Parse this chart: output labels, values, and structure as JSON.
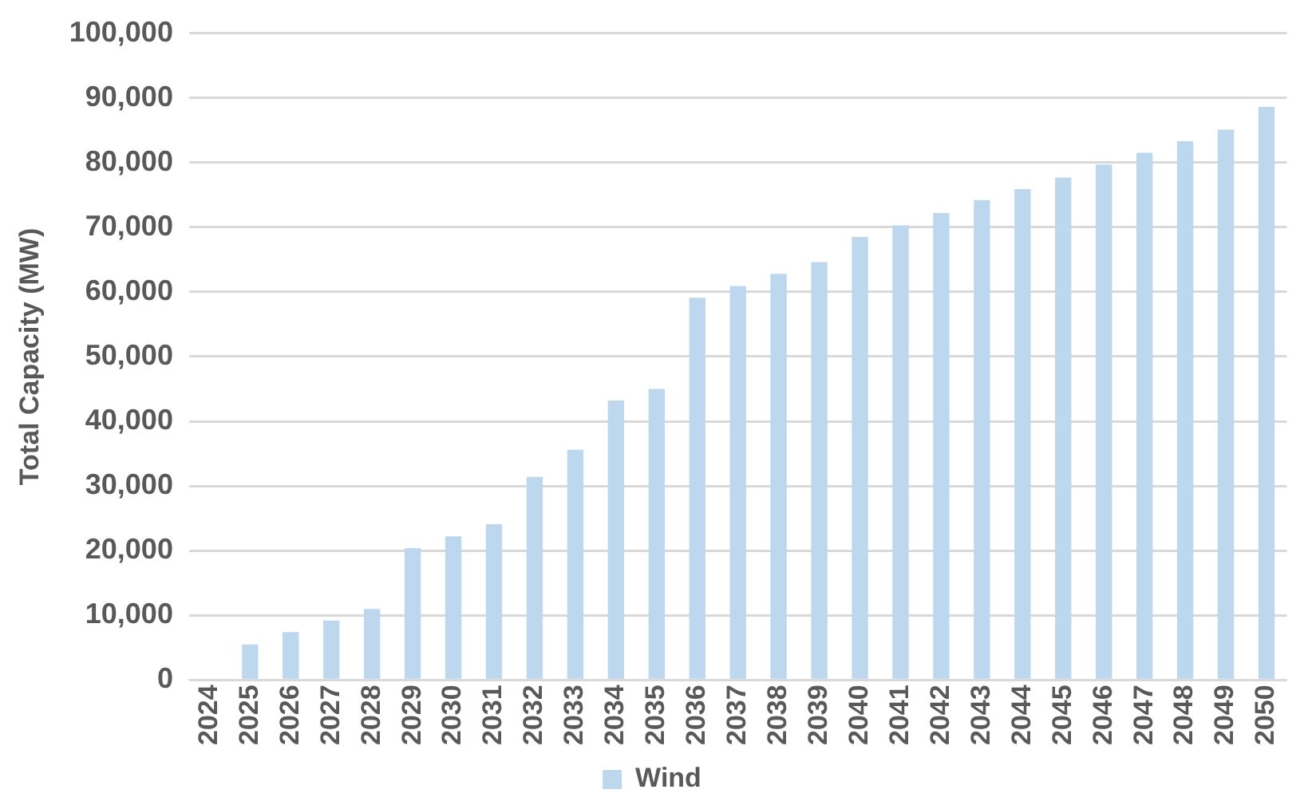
{
  "chart_data": {
    "type": "bar",
    "ylabel": "Total Capacity (MW)",
    "categories": [
      "2024",
      "2025",
      "2026",
      "2027",
      "2028",
      "2029",
      "2030",
      "2031",
      "2032",
      "2033",
      "2034",
      "2035",
      "2036",
      "2037",
      "2038",
      "2039",
      "2040",
      "2041",
      "2042",
      "2043",
      "2044",
      "2045",
      "2046",
      "2047",
      "2048",
      "2049",
      "2050"
    ],
    "series": [
      {
        "name": "Wind",
        "color": "#bdd7ee",
        "values": [
          200,
          5500,
          7400,
          9200,
          11000,
          20400,
          22200,
          24100,
          31400,
          35600,
          43200,
          45000,
          59100,
          60900,
          62800,
          64600,
          68500,
          70300,
          72200,
          74200,
          75900,
          77700,
          79700,
          81500,
          83300,
          85100,
          88600
        ]
      }
    ],
    "ylim": [
      0,
      100000
    ],
    "yticks": [
      0,
      {
        "value": 10000,
        "label": "10,000"
      },
      {
        "value": 20000,
        "label": "20,000"
      },
      {
        "value": 30000,
        "label": "30,000"
      },
      {
        "value": 40000,
        "label": "40,000"
      },
      {
        "value": 50000,
        "label": "50,000"
      },
      {
        "value": 60000,
        "label": "60,000"
      },
      {
        "value": 70000,
        "label": "70,000"
      },
      {
        "value": 80000,
        "label": "80,000"
      },
      {
        "value": 90000,
        "label": "90,000"
      },
      {
        "value": 100000,
        "label": "100,000"
      }
    ],
    "grid": "y",
    "legend": "bottom"
  }
}
